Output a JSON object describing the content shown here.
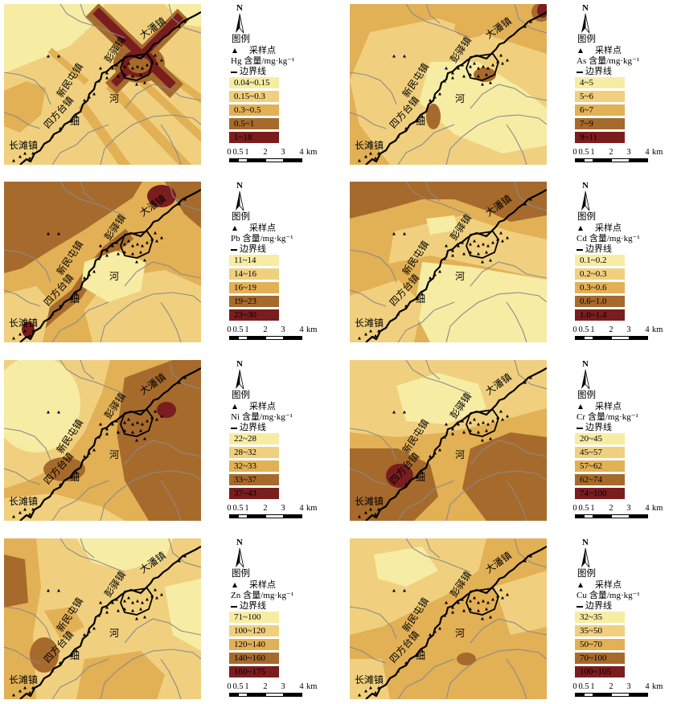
{
  "figure": {
    "map_labels": {
      "dapan": "大潘镇",
      "pengyi": "彭驿镇",
      "xinmintun": "新民屯镇",
      "sifangtai": "四方台镇",
      "changtan": "长滩镇",
      "xi": "细",
      "he": "河"
    },
    "legend": {
      "north": "N",
      "title": "图例",
      "sample_point": "采样点",
      "content_unit": "含量/mg·kg⁻¹",
      "boundary": "边界线"
    },
    "scale_bar": {
      "ticks": [
        "0",
        "0.5",
        "1",
        "2",
        "3",
        "4"
      ],
      "unit": "km"
    },
    "class_colors": [
      "#f7eca3",
      "#f0d07e",
      "#e2b055",
      "#a66a2c",
      "#7a1d1f"
    ],
    "panels": [
      {
        "element": "Hg",
        "classes": [
          "0.04~0.15",
          "0.15~0.3",
          "0.3~0.5",
          "0.5~1",
          "1~18"
        ]
      },
      {
        "element": "As",
        "classes": [
          "4~5",
          "5~6",
          "6~7",
          "7~9",
          "9~11"
        ]
      },
      {
        "element": "Pb",
        "classes": [
          "11~14",
          "14~16",
          "16~19",
          "19~23",
          "23~30"
        ]
      },
      {
        "element": "Cd",
        "classes": [
          "0.1~0.2",
          "0.2~0.3",
          "0.3~0.6",
          "0.6~1.0",
          "1.0~1.4"
        ]
      },
      {
        "element": "Ni",
        "classes": [
          "22~28",
          "28~32",
          "32~33",
          "33~37",
          "37~43"
        ]
      },
      {
        "element": "Cr",
        "classes": [
          "20~45",
          "45~57",
          "57~62",
          "62~74",
          "74~100"
        ]
      },
      {
        "element": "Zn",
        "classes": [
          "71~100",
          "100~120",
          "120~140",
          "140~160",
          "160~175"
        ]
      },
      {
        "element": "Cu",
        "classes": [
          "32~35",
          "35~50",
          "50~70",
          "70~100",
          "100~105"
        ]
      }
    ]
  }
}
